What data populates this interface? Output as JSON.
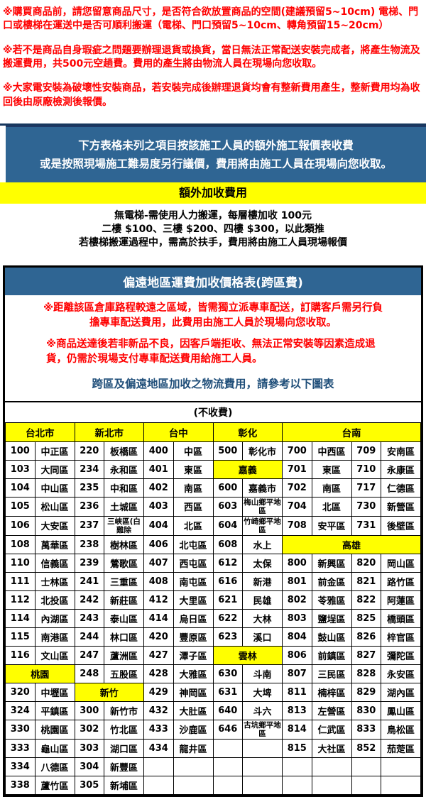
{
  "colors": {
    "header_blue": "#2f6593",
    "dark_navy": "#17375e",
    "highlight_yellow": "#ffff00",
    "notice_red": "#ff0000",
    "note_blue": "#1f4e79"
  },
  "notices": {
    "para1": "※購買商品前，請您留意商品尺寸，是否符合欲放置商品的空間(建議預留5~10cm) 電梯、門口或樓梯在運送中是否可順利搬運（電梯、門口預留5~10cm、轉角預留15~20cm）",
    "para2": "※若不是商品自身瑕疵之問題要辦理退貨或換貨，當日無法正常配送安裝完成者，將產生物流及搬運費用，共500元空趟費。費用的產生將由物流人員在現場向您收取。",
    "para3": "※大家電安裝為破壞性安裝商品，若安裝完成後辦理退貨均會有整新費用產生，整新費用均為收回後由原廠檢測後報價。"
  },
  "extra_fee": {
    "blue_line1": "下方表格未列之項目按該施工人員的額外施工報價表收費",
    "blue_line2": "或是按照現場施工難易度另行議價，費用將由施工人員在現場向您收取。",
    "yellow_title": "額外加收費用",
    "lines": [
      "無電梯-需使用人力搬運，每層樓加收 100元",
      "二樓 $100、三樓 $200、四樓 $300，以此類推",
      "若樓梯搬運過程中，需高於扶手，費用將由施工人員現場報價"
    ]
  },
  "remote_area": {
    "title": "偏遠地區運費加收價格表(跨區費)",
    "red_para1": "※距離該區倉庫路程較遠之區域，皆需獨立派專車配送，訂購客戶需另行負擔專車配送費用，此費用由施工人員於現場向您收取。",
    "red_para2": "※商品送達後若非新品不良，因客戶端拒收、無法正常安裝等因素造成退貨，仍需於現場支付專車配送費用給施工人員。",
    "blue_note": "跨區及偏遠地區加收之物流費用，請參考以下圖表",
    "no_charge_label": "(不收費)",
    "table": {
      "header": [
        {
          "t": "台北市",
          "cs": 2
        },
        {
          "t": "新北市",
          "cs": 2
        },
        {
          "t": "台中",
          "cs": 2
        },
        {
          "t": "彰化",
          "cs": 2
        },
        {
          "t": "台南",
          "cs": 4
        }
      ],
      "rows": [
        [
          "100",
          "中正區",
          "220",
          "板橋區",
          "400",
          "中區",
          "500",
          "彰化市",
          "700",
          "中西區",
          "709",
          "安南區"
        ],
        [
          "103",
          "大同區",
          "234",
          "永和區",
          "401",
          "東區",
          {
            "t": "嘉義",
            "cs": 2,
            "hl": true
          },
          "701",
          "東區",
          "710",
          "永康區"
        ],
        [
          "104",
          "中山區",
          "235",
          "中和區",
          "402",
          "南區",
          "600",
          "嘉義市",
          "702",
          "南區",
          "717",
          "仁德區"
        ],
        [
          "105",
          "松山區",
          "236",
          "土城區",
          "403",
          "西區",
          "603",
          {
            "t": "梅山鄉平地區",
            "sm": true
          },
          "704",
          "北區",
          "730",
          "新營區"
        ],
        [
          "106",
          "大安區",
          "237",
          {
            "t": "三峽區(白雞除",
            "sm": true
          },
          "404",
          "北區",
          "604",
          {
            "t": "竹崎鄉平地區",
            "sm": true
          },
          "708",
          "安平區",
          "731",
          "後壁區"
        ],
        [
          "108",
          "萬華區",
          "238",
          "樹林區",
          "406",
          "北屯區",
          "608",
          "水上",
          {
            "t": "高雄",
            "cs": 4,
            "hl": true
          }
        ],
        [
          "110",
          "信義區",
          "239",
          "鶯歌區",
          "407",
          "西屯區",
          "612",
          "太保",
          "800",
          "新興區",
          "820",
          "岡山區"
        ],
        [
          "111",
          "士林區",
          "241",
          "三重區",
          "408",
          "南屯區",
          "616",
          "新港",
          "801",
          "前金區",
          "821",
          "路竹區"
        ],
        [
          "112",
          "北投區",
          "242",
          "新莊區",
          "412",
          "大里區",
          "621",
          "民雄",
          "802",
          "苓雅區",
          "822",
          "阿蓮區"
        ],
        [
          "114",
          "內湖區",
          "243",
          "泰山區",
          "414",
          "烏日區",
          "622",
          "大林",
          "803",
          "鹽埕區",
          "825",
          "橋頭區"
        ],
        [
          "115",
          "南港區",
          "244",
          "林口區",
          "420",
          "豐原區",
          "623",
          "溪口",
          "804",
          "鼓山區",
          "826",
          "梓官區"
        ],
        [
          "116",
          "文山區",
          "247",
          "蘆洲區",
          "427",
          "潭子區",
          {
            "t": "雲林",
            "cs": 2,
            "hl": true
          },
          "806",
          "前鎮區",
          "827",
          "彌陀區"
        ],
        [
          {
            "t": "桃園",
            "cs": 2,
            "hl": true
          },
          "248",
          "五股區",
          "428",
          "大雅區",
          "630",
          "斗南",
          "807",
          "三民區",
          "828",
          "永安區"
        ],
        [
          "320",
          "中壢區",
          {
            "t": "新竹",
            "cs": 2,
            "hl": true
          },
          "429",
          "神岡區",
          "631",
          "大埤",
          "811",
          "楠梓區",
          "829",
          "湖內區"
        ],
        [
          "324",
          "平鎮區",
          "300",
          "新竹市",
          "432",
          "大肚區",
          "640",
          "斗六",
          "813",
          "左營區",
          "830",
          "鳳山區"
        ],
        [
          "330",
          "桃園區",
          "302",
          "竹北區",
          "433",
          "沙鹿區",
          "646",
          {
            "t": "古坑鄉平地區",
            "sm": true
          },
          "814",
          "仁武區",
          "833",
          "鳥松區"
        ],
        [
          "333",
          "龜山區",
          "303",
          "湖口區",
          "434",
          "龍井區",
          "",
          "",
          "815",
          "大社區",
          "852",
          "茄萣區"
        ],
        [
          "334",
          "八德區",
          "304",
          "新豐區",
          "",
          "",
          "",
          "",
          "",
          "",
          "",
          ""
        ],
        [
          "338",
          "蘆竹區",
          "305",
          "新埔區",
          "",
          "",
          "",
          "",
          "",
          "",
          "",
          ""
        ]
      ]
    }
  }
}
